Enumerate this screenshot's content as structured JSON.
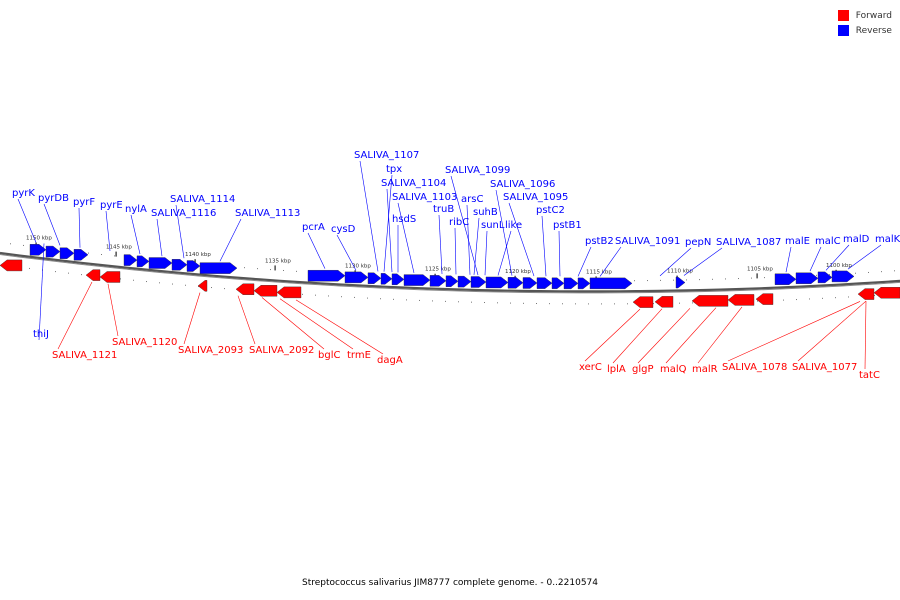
{
  "legend": [
    {
      "label": "Forward",
      "color": "#ff0000"
    },
    {
      "label": "Reverse",
      "color": "#0000ff"
    }
  ],
  "caption": "Streptococcus salivarius JIM8777 complete genome. - 0..2210574",
  "colors": {
    "forward": "#ff0000",
    "reverse": "#0000ff",
    "backbone": "#888888"
  },
  "ticks": [
    "1150 kbp",
    "1145 kbp",
    "1140 kbp",
    "1135 kbp",
    "1130 kbp",
    "1125 kbp",
    "1120 kbp",
    "1115 kbp",
    "1110 kbp",
    "1105 kbp",
    "1100 kbp"
  ],
  "reverse_labels": [
    "pyrK",
    "pyrDB",
    "pyrF",
    "pyrE",
    "nylA",
    "SALIVA_1116",
    "SALIVA_1114",
    "SALIVA_1113",
    "pcrA",
    "cysD",
    "SALIVA_1107",
    "tpx",
    "SALIVA_1104",
    "hsdS",
    "SALIVA_1103",
    "truB",
    "ribC",
    "SALIVA_1099",
    "arsC",
    "suhB",
    "sunL",
    "SALIVA_1096",
    "like",
    "SALIVA_1095",
    "pstC2",
    "pstB1",
    "pstB2",
    "SALIVA_1091",
    "pepN",
    "SALIVA_1087",
    "malE",
    "malC",
    "malD",
    "malK",
    "thiJ"
  ],
  "forward_labels": [
    "SALIVA_1121",
    "SALIVA_1120",
    "SALIVA_2093",
    "SALIVA_2092",
    "bglC",
    "trmE",
    "dagA",
    "xerC",
    "lplA",
    "glgP",
    "malQ",
    "malR",
    "SALIVA_1078",
    "SALIVA_1077",
    "tatC"
  ]
}
